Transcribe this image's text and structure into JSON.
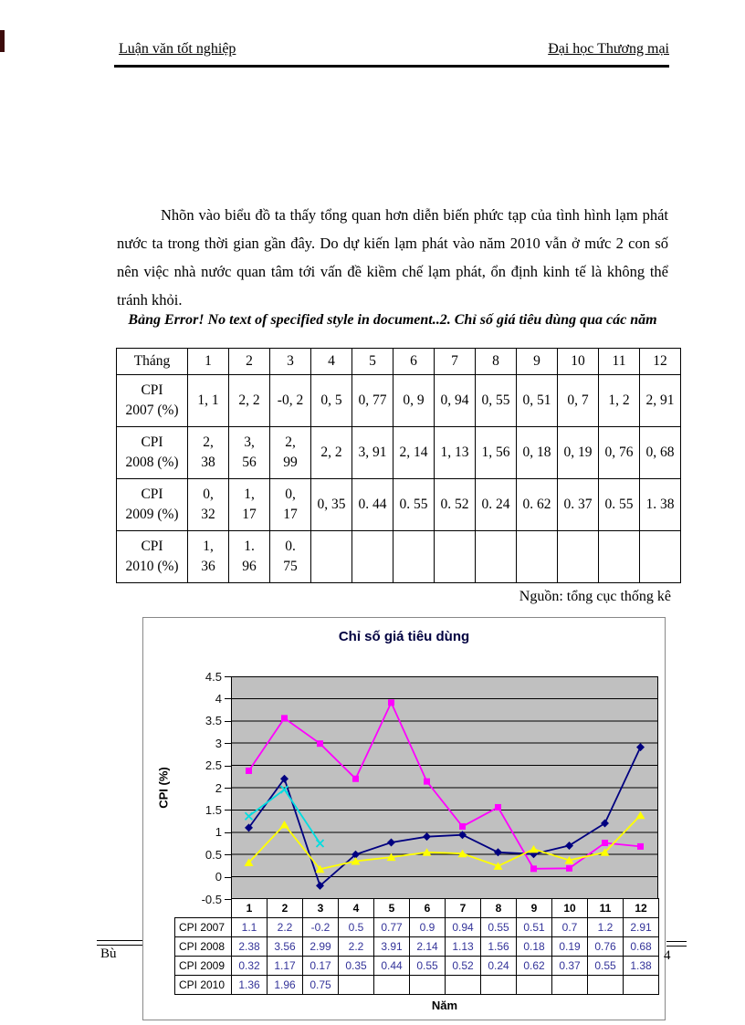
{
  "header": {
    "left": "Luận văn tốt nghiệp",
    "right": "Đại học Thương mại"
  },
  "body": {
    "paragraph": "Nhõn vào biểu đồ ta thấy tổng quan hơn diễn biến phức tạp của tình hình lạm phát nước ta trong thời gian gần đây. Do dự kiến lạm phát vào năm 2010 vẫn ở mức 2 con số nên việc nhà nước quan tâm tới vấn đề kiềm chế lạm phát, ổn định kinh tế là không thể tránh khỏi.",
    "table_caption": "Bảng  Error! No text of specified style in document..2. Chỉ số giá tiêu dùng qua các năm",
    "source_note": "Nguồn: tổng cục thống kê"
  },
  "cpi_table": {
    "columns": [
      "Tháng",
      "1",
      "2",
      "3",
      "4",
      "5",
      "6",
      "7",
      "8",
      "9",
      "10",
      "11",
      "12"
    ],
    "rows": [
      {
        "label": "CPI\n2007 (%)",
        "cells": [
          "1, 1",
          "2, 2",
          "-0, 2",
          "0, 5",
          "0, 77",
          "0, 9",
          "0, 94",
          "0, 55",
          "0, 51",
          "0, 7",
          "1, 2",
          "2, 91"
        ]
      },
      {
        "label": "CPI\n2008 (%)",
        "cells": [
          "2,\n38",
          "3,\n56",
          "2,\n99",
          "2, 2",
          "3, 91",
          "2, 14",
          "1, 13",
          "1, 56",
          "0, 18",
          "0, 19",
          "0, 76",
          "0, 68"
        ]
      },
      {
        "label": "CPI\n2009 (%)",
        "cells": [
          "0,\n32",
          "1,\n17",
          "0,\n17",
          "0, 35",
          "0. 44",
          "0. 55",
          "0. 52",
          "0. 24",
          "0. 62",
          "0. 37",
          "0. 55",
          "1. 38"
        ]
      },
      {
        "label": "CPI\n2010 (%)",
        "cells": [
          "1,\n36",
          "1.\n96",
          "0.\n75",
          "",
          "",
          "",
          "",
          "",
          "",
          "",
          "",
          ""
        ]
      }
    ]
  },
  "chart_data": {
    "type": "line",
    "title": "Chỉ số giá tiêu dùng",
    "ylabel": "CPI (%)",
    "xlabel": "Năm",
    "ylim": [
      -0.5,
      4.5
    ],
    "ytick_step": 0.5,
    "grid": true,
    "plot_bg": "#C0C0C0",
    "legend_position": "data-table-below",
    "categories": [
      "1",
      "2",
      "3",
      "4",
      "5",
      "6",
      "7",
      "8",
      "9",
      "10",
      "11",
      "12"
    ],
    "series": [
      {
        "name": "CPI 2007",
        "color": "#000080",
        "marker": "diamond",
        "values": [
          1.1,
          2.2,
          -0.2,
          0.5,
          0.77,
          0.9,
          0.94,
          0.55,
          0.51,
          0.7,
          1.2,
          2.91
        ]
      },
      {
        "name": "CPI 2008",
        "color": "#FF00FF",
        "marker": "square",
        "values": [
          2.38,
          3.56,
          2.99,
          2.2,
          3.91,
          2.14,
          1.13,
          1.56,
          0.18,
          0.19,
          0.76,
          0.68
        ]
      },
      {
        "name": "CPI 2009",
        "color": "#FFFF00",
        "marker": "triangle",
        "values": [
          0.32,
          1.17,
          0.17,
          0.35,
          0.44,
          0.55,
          0.52,
          0.24,
          0.62,
          0.37,
          0.55,
          1.38
        ]
      },
      {
        "name": "CPI 2010",
        "color": "#00DDE0",
        "marker": "x",
        "values": [
          1.36,
          1.96,
          0.75,
          null,
          null,
          null,
          null,
          null,
          null,
          null,
          null,
          null
        ]
      }
    ]
  },
  "footer": {
    "left_text": "Bù",
    "page_number": "4"
  }
}
